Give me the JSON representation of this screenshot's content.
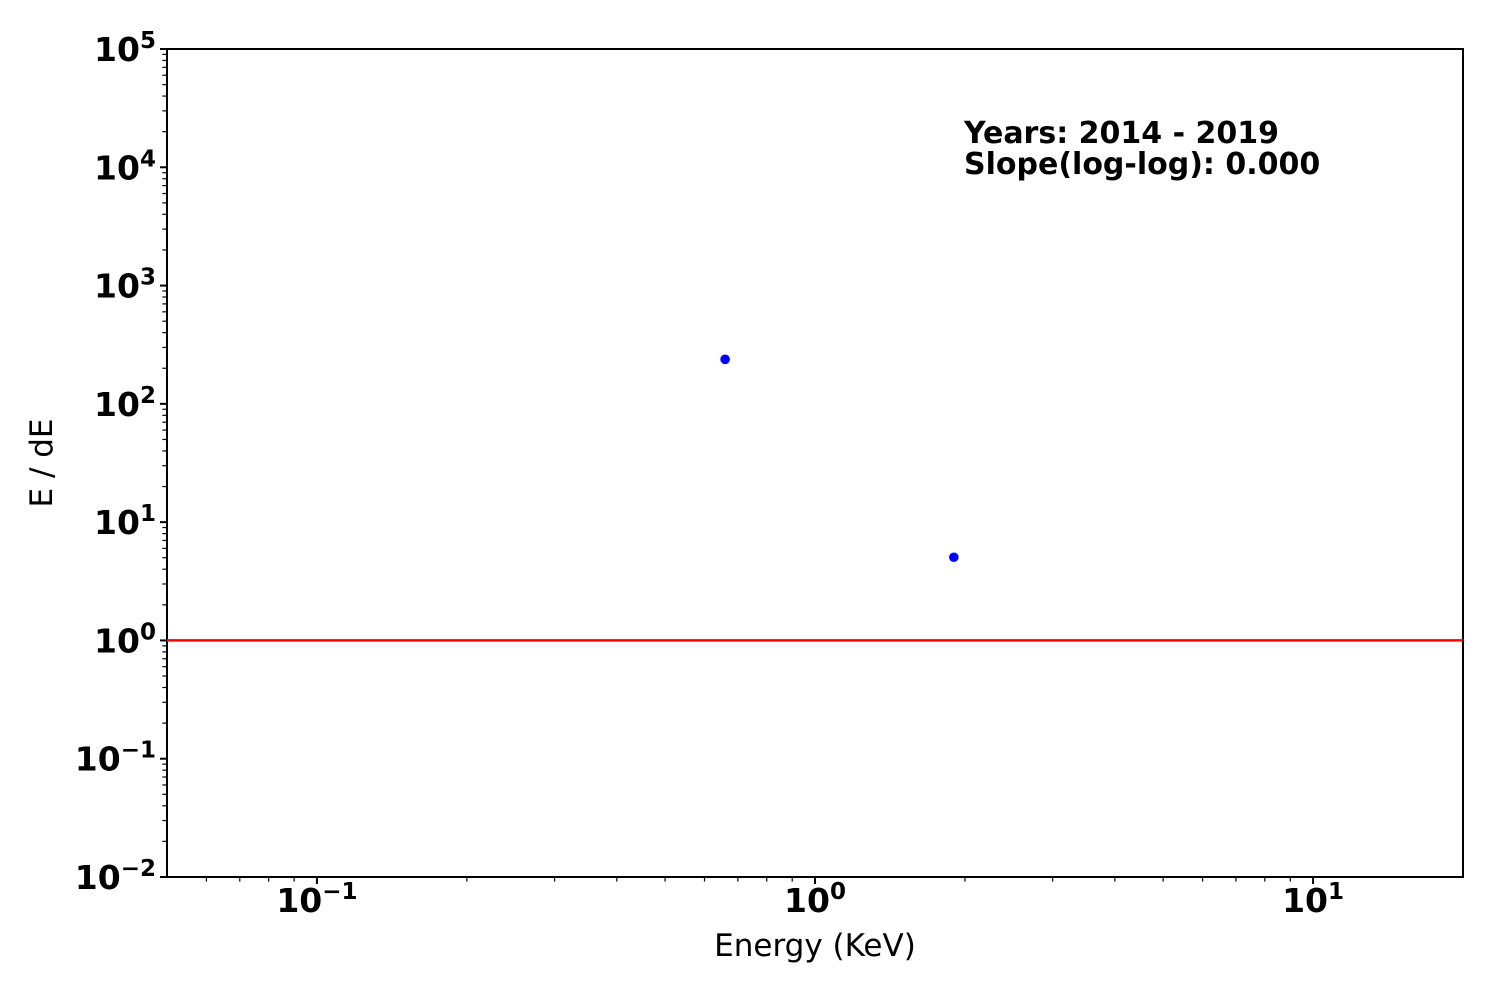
{
  "chart_data": {
    "type": "scatter",
    "title": "",
    "xlabel": "Energy (KeV)",
    "ylabel": "E / dE",
    "xscale": "log",
    "yscale": "log",
    "xlim": [
      0.05,
      20
    ],
    "ylim": [
      0.01,
      100000
    ],
    "x_major_tick_exponents": [
      -1,
      0,
      1
    ],
    "y_major_tick_exponents": [
      -2,
      -1,
      0,
      1,
      2,
      3,
      4,
      5
    ],
    "grid": false,
    "series": [
      {
        "name": "spectrum-points",
        "marker": "circle",
        "color": "#0000ff",
        "points": [
          {
            "x": 0.66,
            "y": 238
          },
          {
            "x": 1.9,
            "y": 5.05
          }
        ]
      }
    ],
    "reference_line": {
      "orientation": "horizontal",
      "y": 1.0,
      "color": "#ff0000"
    },
    "annotation": {
      "line1": "Years: 2014 - 2019",
      "line2": "Slope(log-log): 0.000"
    }
  },
  "colors": {
    "background": "#ffffff",
    "axis": "#000000",
    "text": "#000000",
    "point": "#0000ff",
    "reference_line": "#ff0000"
  }
}
